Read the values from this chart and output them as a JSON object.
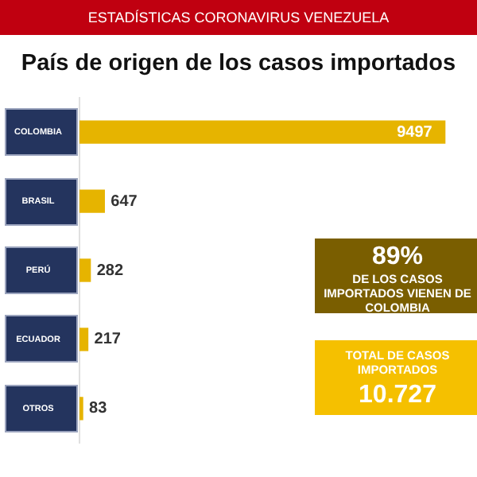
{
  "chart_data": {
    "type": "bar",
    "orientation": "horizontal",
    "title": "País de origen de los casos importados",
    "categories": [
      "COLOMBIA",
      "BRASIL",
      "PERÚ",
      "ECUADOR",
      "OTROS"
    ],
    "values": [
      9497,
      647,
      282,
      217,
      83
    ],
    "color": "#e6b400",
    "data_labels": true,
    "grid": false,
    "legend": false,
    "tick_labels": "y",
    "annotations": [
      "ESTADÍSTICAS CORONAVIRUS VENEZUELA",
      "89%",
      "DE LOS CASOS IMPORTADOS VIENEN DE COLOMBIA",
      "TOTAL DE CASOS IMPORTADOS",
      "10.727"
    ]
  }
}
